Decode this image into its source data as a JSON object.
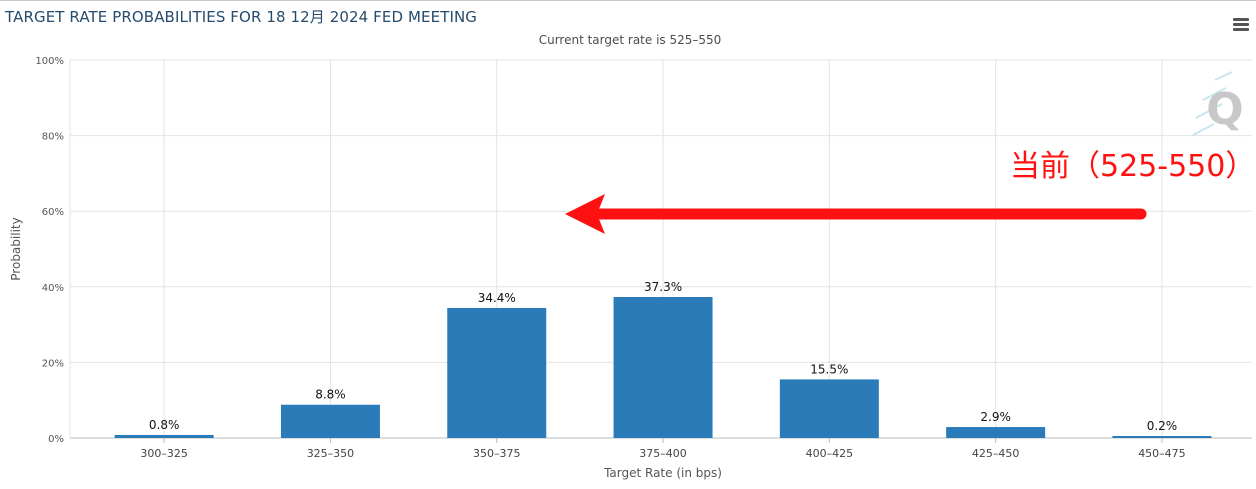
{
  "title": "TARGET RATE PROBABILITIES FOR 18 12月 2024 FED MEETING",
  "subtitle": "Current target rate is 525–550",
  "menu_icon": "hamburger-menu-icon",
  "watermark_icon": "q-logo-icon",
  "annotation": {
    "text": "当前（525-550）",
    "color": "#ff0000",
    "arrow": "red-arrow-pointing-left"
  },
  "colors": {
    "bar": "#2b7bb9",
    "grid": "#e0e0e0",
    "annotation": "#ff0000"
  },
  "chart_data": {
    "type": "bar",
    "title": "TARGET RATE PROBABILITIES FOR 18 12月 2024 FED MEETING",
    "subtitle": "Current target rate is 525–550",
    "xlabel": "Target Rate (in bps)",
    "ylabel": "Probability",
    "categories": [
      "300–325",
      "325–350",
      "350–375",
      "375–400",
      "400–425",
      "425–450",
      "450–475"
    ],
    "values": [
      0.8,
      8.8,
      34.4,
      37.3,
      15.5,
      2.9,
      0.2
    ],
    "data_labels": [
      "0.8%",
      "8.8%",
      "34.4%",
      "37.3%",
      "15.5%",
      "2.9%",
      "0.2%"
    ],
    "yticks": [
      "0%",
      "20%",
      "40%",
      "60%",
      "80%",
      "100%"
    ],
    "ytick_values": [
      0,
      20,
      40,
      60,
      80,
      100
    ],
    "ylim": [
      0,
      100
    ],
    "grid": true,
    "legend": "none"
  }
}
